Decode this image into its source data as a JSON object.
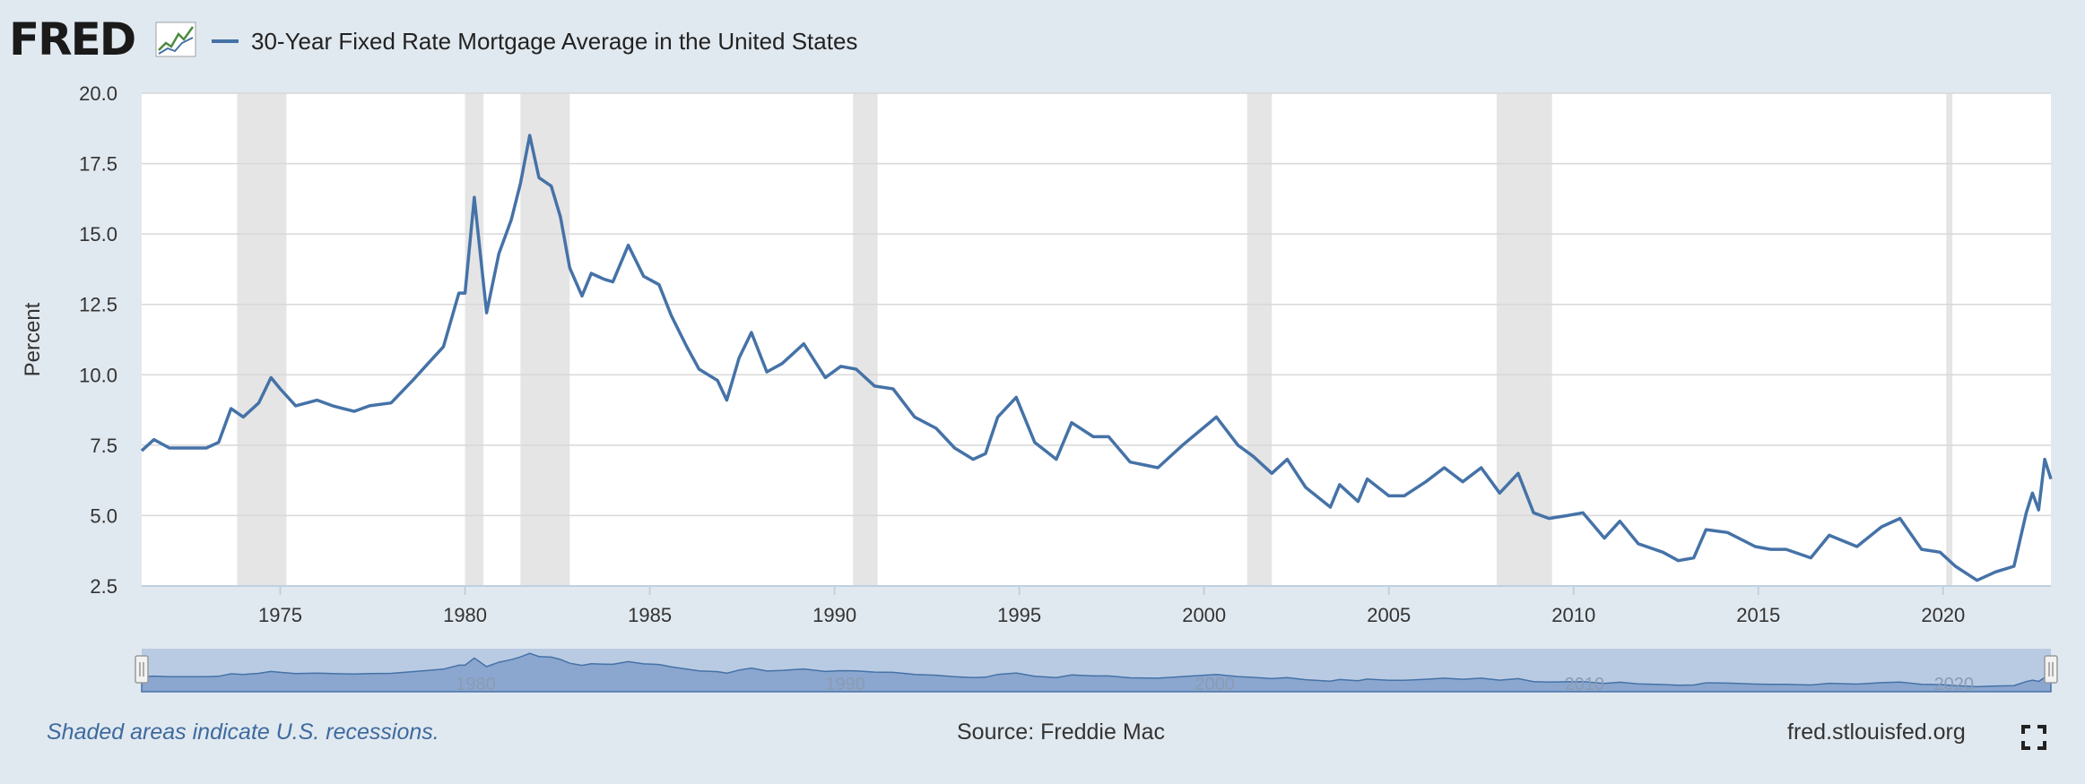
{
  "logo": {
    "text": "FRED"
  },
  "icons": {
    "logo_chart": "line-chart-icon",
    "fullscreen": "fullscreen-icon"
  },
  "footer": {
    "note": "Shaded areas indicate U.S. recessions.",
    "source": "Source: Freddie Mac",
    "site": "fred.stlouisfed.org"
  },
  "colors": {
    "series": "#4572a7",
    "recession": "#e5e5e5",
    "background": "#e1e9f0",
    "navigator_fill": "#b9cbe3"
  },
  "chart_data": {
    "type": "line",
    "title": "",
    "xlabel": "",
    "ylabel": "Percent",
    "xlim": [
      "1971-04",
      "2022-12"
    ],
    "ylim": [
      2.5,
      20.0
    ],
    "y_ticks": [
      "2.5",
      "5.0",
      "7.5",
      "10.0",
      "12.5",
      "15.0",
      "17.5",
      "20.0"
    ],
    "x_ticks": [
      "1975",
      "1980",
      "1985",
      "1990",
      "1995",
      "2000",
      "2005",
      "2010",
      "2015",
      "2020"
    ],
    "grid": true,
    "legend_position": "top-left",
    "recessions": [
      [
        "1973-11",
        "1975-03"
      ],
      [
        "1980-01",
        "1980-07"
      ],
      [
        "1981-07",
        "1982-11"
      ],
      [
        "1990-07",
        "1991-03"
      ],
      [
        "2001-03",
        "2001-11"
      ],
      [
        "2007-12",
        "2009-06"
      ],
      [
        "2020-02",
        "2020-04"
      ]
    ],
    "navigator": {
      "x_ticks": [
        "1980",
        "1990",
        "2000",
        "2010",
        "2020"
      ]
    },
    "series": [
      {
        "name": "30-Year Fixed Rate Mortgage Average in the United States",
        "points": [
          [
            "1971-04",
            7.3
          ],
          [
            "1971-08",
            7.7
          ],
          [
            "1972-01",
            7.4
          ],
          [
            "1972-06",
            7.4
          ],
          [
            "1973-01",
            7.4
          ],
          [
            "1973-05",
            7.6
          ],
          [
            "1973-09",
            8.8
          ],
          [
            "1974-01",
            8.5
          ],
          [
            "1974-06",
            9.0
          ],
          [
            "1974-10",
            9.9
          ],
          [
            "1975-01",
            9.5
          ],
          [
            "1975-06",
            8.9
          ],
          [
            "1976-01",
            9.1
          ],
          [
            "1976-06",
            8.9
          ],
          [
            "1977-01",
            8.7
          ],
          [
            "1977-06",
            8.9
          ],
          [
            "1978-01",
            9.0
          ],
          [
            "1978-08",
            9.8
          ],
          [
            "1979-01",
            10.4
          ],
          [
            "1979-06",
            11.0
          ],
          [
            "1979-11",
            12.9
          ],
          [
            "1980-01",
            12.9
          ],
          [
            "1980-04",
            16.3
          ],
          [
            "1980-08",
            12.2
          ],
          [
            "1980-12",
            14.3
          ],
          [
            "1981-04",
            15.5
          ],
          [
            "1981-07",
            16.8
          ],
          [
            "1981-10",
            18.5
          ],
          [
            "1982-01",
            17.0
          ],
          [
            "1982-05",
            16.7
          ],
          [
            "1982-08",
            15.6
          ],
          [
            "1982-11",
            13.8
          ],
          [
            "1983-03",
            12.8
          ],
          [
            "1983-06",
            13.6
          ],
          [
            "1983-10",
            13.4
          ],
          [
            "1984-01",
            13.3
          ],
          [
            "1984-06",
            14.6
          ],
          [
            "1984-11",
            13.5
          ],
          [
            "1985-04",
            13.2
          ],
          [
            "1985-08",
            12.1
          ],
          [
            "1986-01",
            11.0
          ],
          [
            "1986-05",
            10.2
          ],
          [
            "1986-11",
            9.8
          ],
          [
            "1987-02",
            9.1
          ],
          [
            "1987-06",
            10.6
          ],
          [
            "1987-10",
            11.5
          ],
          [
            "1988-03",
            10.1
          ],
          [
            "1988-08",
            10.4
          ],
          [
            "1989-03",
            11.1
          ],
          [
            "1989-10",
            9.9
          ],
          [
            "1990-03",
            10.3
          ],
          [
            "1990-08",
            10.2
          ],
          [
            "1991-02",
            9.6
          ],
          [
            "1991-08",
            9.5
          ],
          [
            "1992-03",
            8.5
          ],
          [
            "1992-10",
            8.1
          ],
          [
            "1993-04",
            7.4
          ],
          [
            "1993-10",
            7.0
          ],
          [
            "1994-02",
            7.2
          ],
          [
            "1994-06",
            8.5
          ],
          [
            "1994-12",
            9.2
          ],
          [
            "1995-06",
            7.6
          ],
          [
            "1996-01",
            7.0
          ],
          [
            "1996-06",
            8.3
          ],
          [
            "1997-01",
            7.8
          ],
          [
            "1997-06",
            7.8
          ],
          [
            "1998-01",
            6.9
          ],
          [
            "1998-10",
            6.7
          ],
          [
            "1999-06",
            7.5
          ],
          [
            "2000-05",
            8.5
          ],
          [
            "2000-12",
            7.5
          ],
          [
            "2001-05",
            7.1
          ],
          [
            "2001-11",
            6.5
          ],
          [
            "2002-04",
            7.0
          ],
          [
            "2002-10",
            6.0
          ],
          [
            "2003-06",
            5.3
          ],
          [
            "2003-09",
            6.1
          ],
          [
            "2004-03",
            5.5
          ],
          [
            "2004-06",
            6.3
          ],
          [
            "2005-01",
            5.7
          ],
          [
            "2005-06",
            5.7
          ],
          [
            "2006-01",
            6.2
          ],
          [
            "2006-07",
            6.7
          ],
          [
            "2007-01",
            6.2
          ],
          [
            "2007-07",
            6.7
          ],
          [
            "2008-01",
            5.8
          ],
          [
            "2008-07",
            6.5
          ],
          [
            "2008-12",
            5.1
          ],
          [
            "2009-05",
            4.9
          ],
          [
            "2009-11",
            5.0
          ],
          [
            "2010-04",
            5.1
          ],
          [
            "2010-11",
            4.2
          ],
          [
            "2011-04",
            4.8
          ],
          [
            "2011-10",
            4.0
          ],
          [
            "2012-06",
            3.7
          ],
          [
            "2012-11",
            3.4
          ],
          [
            "2013-04",
            3.5
          ],
          [
            "2013-08",
            4.5
          ],
          [
            "2014-03",
            4.4
          ],
          [
            "2014-12",
            3.9
          ],
          [
            "2015-05",
            3.8
          ],
          [
            "2015-10",
            3.8
          ],
          [
            "2016-06",
            3.5
          ],
          [
            "2016-12",
            4.3
          ],
          [
            "2017-09",
            3.9
          ],
          [
            "2018-05",
            4.6
          ],
          [
            "2018-11",
            4.9
          ],
          [
            "2019-06",
            3.8
          ],
          [
            "2019-12",
            3.7
          ],
          [
            "2020-05",
            3.2
          ],
          [
            "2020-12",
            2.7
          ],
          [
            "2021-06",
            3.0
          ],
          [
            "2021-12",
            3.2
          ],
          [
            "2022-04",
            5.1
          ],
          [
            "2022-06",
            5.8
          ],
          [
            "2022-08",
            5.2
          ],
          [
            "2022-10",
            7.0
          ],
          [
            "2022-12",
            6.3
          ]
        ]
      }
    ]
  }
}
